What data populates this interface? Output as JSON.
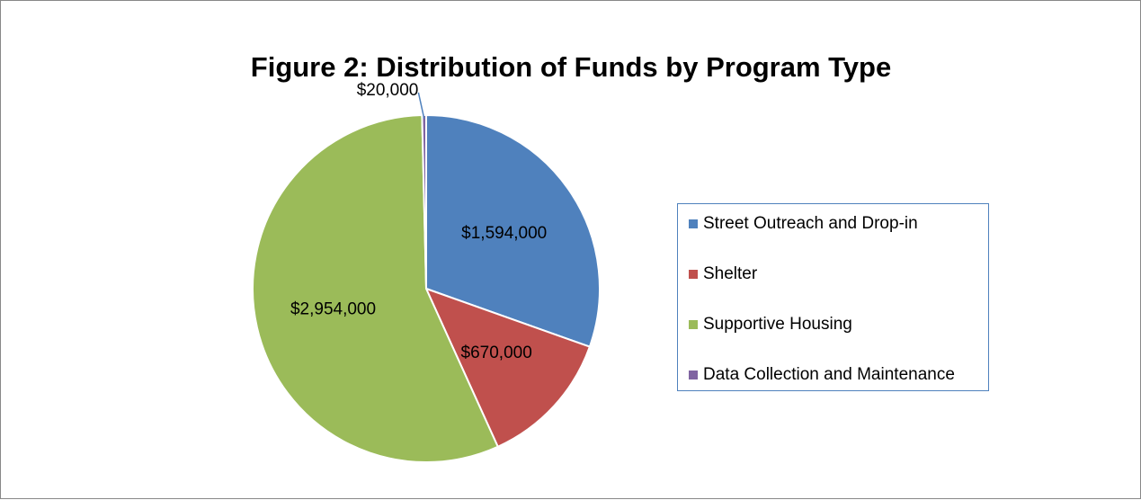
{
  "chart_data": {
    "type": "pie",
    "title": "Figure 2: Distribution of Funds by Program Type",
    "categories": [
      "Street Outreach and Drop-in",
      "Shelter",
      "Supportive Housing",
      "Data Collection and Maintenance"
    ],
    "values": [
      1594000,
      670000,
      2954000,
      20000
    ],
    "value_labels": [
      "$1,594,000",
      "$670,000",
      "$2,954,000",
      "$20,000"
    ],
    "colors": [
      "#4f81bd",
      "#c0504d",
      "#9bbb59",
      "#8064a2"
    ],
    "legend": "right"
  }
}
